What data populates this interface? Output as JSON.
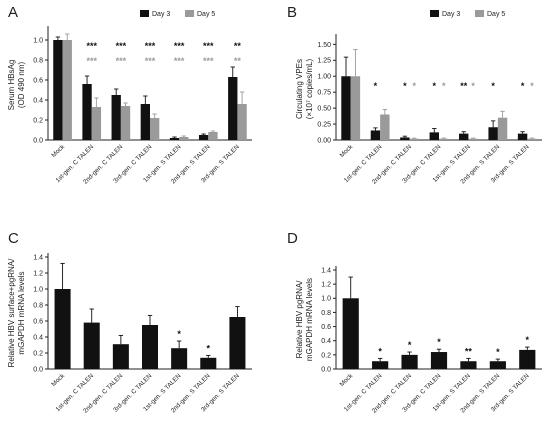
{
  "colors": {
    "day3": "#111111",
    "day5": "#9a9a9a",
    "axis": "#222222"
  },
  "chart_data": [
    {
      "panel": "A",
      "type": "bar",
      "ylabel_lines": [
        "Serum HBsAg",
        "(OD 490 nm)"
      ],
      "ylim": [
        0,
        1.1
      ],
      "yticks": [
        "0.0",
        "0.2",
        "0.4",
        "0.6",
        "0.8",
        "1.0"
      ],
      "categories": [
        "Mock",
        "1st-gen. C TALEN",
        "2nd-gen. C TALEN",
        "3rd-gen. C TALEN",
        "1st-gen. S TALEN",
        "2nd-gen. S TALEN",
        "3rd-gen. S TALEN"
      ],
      "legend": "top-right",
      "series": [
        {
          "name": "Day 3",
          "values": [
            1.0,
            0.56,
            0.45,
            0.36,
            0.02,
            0.05,
            0.63
          ],
          "errors": [
            0.03,
            0.08,
            0.06,
            0.08,
            0.01,
            0.01,
            0.1
          ],
          "sig": [
            "",
            "***",
            "***",
            "***",
            "***",
            "***",
            "**"
          ]
        },
        {
          "name": "Day 5",
          "values": [
            1.0,
            0.33,
            0.34,
            0.22,
            0.03,
            0.08,
            0.36
          ],
          "errors": [
            0.06,
            0.09,
            0.03,
            0.04,
            0.01,
            0.01,
            0.12
          ],
          "sig": [
            "",
            "***",
            "***",
            "***",
            "***",
            "***",
            "**"
          ]
        }
      ]
    },
    {
      "panel": "B",
      "type": "bar",
      "ylabel_lines": [
        "Circulating VPEs",
        "(×10⁷ copies/mL)"
      ],
      "ylim": [
        0,
        1.6
      ],
      "yticks": [
        "0.00",
        "0.25",
        "0.50",
        "0.75",
        "1.00",
        "1.25",
        "1.50"
      ],
      "categories": [
        "Mock",
        "1st-gen. C TALEN",
        "2nd-gen. C TALEN",
        "3rd-gen. C TALEN",
        "1st-gen. S TALEN",
        "2nd-gen. S TALEN",
        "3rd-gen. S TALEN"
      ],
      "legend": "top-right",
      "series": [
        {
          "name": "Day 3",
          "values": [
            1.0,
            0.15,
            0.04,
            0.12,
            0.1,
            0.2,
            0.1
          ],
          "errors": [
            0.3,
            0.04,
            0.02,
            0.06,
            0.03,
            0.1,
            0.03
          ],
          "sig": [
            "",
            "*",
            "*",
            "*",
            "**",
            "*",
            "*"
          ]
        },
        {
          "name": "Day 5",
          "values": [
            1.0,
            0.4,
            0.02,
            0.02,
            0.02,
            0.35,
            0.02
          ],
          "errors": [
            0.42,
            0.08,
            0.01,
            0.01,
            0.01,
            0.1,
            0.01
          ],
          "sig": [
            "",
            "",
            "*",
            "*",
            "*",
            "",
            "*"
          ]
        }
      ]
    },
    {
      "panel": "C",
      "type": "bar",
      "ylabel_lines": [
        "Relative HBV surface+pgRNA/",
        "mGAPDH mRNA levels"
      ],
      "ylim": [
        0,
        1.4
      ],
      "yticks": [
        "0.0",
        "0.2",
        "0.4",
        "0.6",
        "0.8",
        "1.0",
        "1.2",
        "1.4"
      ],
      "categories": [
        "Mock",
        "1st-gen. C TALEN",
        "2nd-gen. C TALEN",
        "3rd-gen. C TALEN",
        "1st-gen. S TALEN",
        "2nd-gen. S TALEN",
        "3rd-gen. S TALEN"
      ],
      "series": [
        {
          "name": "",
          "values": [
            1.0,
            0.58,
            0.31,
            0.55,
            0.26,
            0.14,
            0.65
          ],
          "errors": [
            0.32,
            0.17,
            0.11,
            0.12,
            0.09,
            0.03,
            0.13
          ],
          "sig": [
            "",
            "",
            "",
            "",
            "*",
            "*",
            ""
          ]
        }
      ]
    },
    {
      "panel": "D",
      "type": "bar",
      "ylabel_lines": [
        "Relative HBV pgRNA/",
        "mGAPDH mRNA levels"
      ],
      "ylim": [
        0,
        1.4
      ],
      "yticks": [
        "0.0",
        "0.2",
        "0.4",
        "0.6",
        "0.8",
        "1.0",
        "1.2",
        "1.4"
      ],
      "categories": [
        "Mock",
        "1st-gen. C TALEN",
        "2nd-gen. C TALEN",
        "3rd-gen. C TALEN",
        "1st-gen. S TALEN",
        "2nd-gen. S TALEN",
        "3rd-gen. S TALEN"
      ],
      "series": [
        {
          "name": "",
          "values": [
            1.0,
            0.11,
            0.2,
            0.24,
            0.11,
            0.11,
            0.27
          ],
          "errors": [
            0.3,
            0.04,
            0.04,
            0.04,
            0.04,
            0.03,
            0.04
          ],
          "sig": [
            "",
            "*",
            "*",
            "*",
            "**",
            "*",
            "*"
          ]
        }
      ]
    }
  ]
}
